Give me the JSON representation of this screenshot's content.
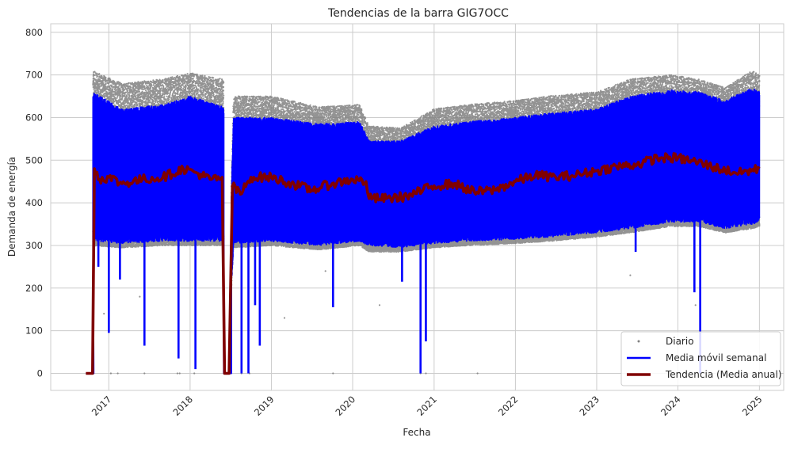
{
  "chart_data": {
    "type": "line",
    "title": "Tendencias de la barra GIG7OCC",
    "xlabel": "Fecha",
    "ylabel": "Demanda de energía",
    "x_range": [
      "2016-04-15",
      "2025-04-20"
    ],
    "ylim": [
      -40,
      820
    ],
    "x_tick_labels": [
      "2017",
      "2018",
      "2019",
      "2020",
      "2021",
      "2022",
      "2023",
      "2024",
      "2025"
    ],
    "y_ticks": [
      0,
      100,
      200,
      300,
      400,
      500,
      600,
      700,
      800
    ],
    "grid": true,
    "legend_position": "bottom-right",
    "colors": {
      "daily": "#808080",
      "weekly": "#0000ff",
      "annual": "#800000",
      "grid": "#cccccc",
      "axes": "#cccccc"
    },
    "series": [
      {
        "name": "Diario",
        "style": "scatter",
        "approx_envelope": {
          "x": [
            "2016-09-20",
            "2016-10-20",
            "2017-03-01",
            "2017-09-01",
            "2018-01-01",
            "2018-06-01",
            "2018-06-15",
            "2018-07-15",
            "2019-01-01",
            "2019-08-01",
            "2020-02-01",
            "2020-03-15",
            "2020-08-01",
            "2021-01-01",
            "2021-06-01",
            "2022-01-01",
            "2022-06-01",
            "2023-01-01",
            "2023-06-01",
            "2023-12-01",
            "2024-04-01",
            "2024-08-01",
            "2024-12-01",
            "2025-01-01"
          ],
          "upper": [
            0,
            710,
            680,
            690,
            705,
            690,
            0,
            650,
            650,
            625,
            630,
            580,
            575,
            620,
            630,
            640,
            650,
            660,
            690,
            700,
            690,
            670,
            710,
            700
          ],
          "lower": [
            0,
            300,
            295,
            300,
            300,
            300,
            0,
            295,
            300,
            290,
            300,
            285,
            285,
            295,
            300,
            305,
            310,
            320,
            330,
            345,
            345,
            330,
            340,
            345
          ]
        }
      },
      {
        "name": "Media móvil semanal",
        "style": "line",
        "approx_envelope": {
          "x": [
            "2016-09-20",
            "2016-10-20",
            "2017-03-01",
            "2017-09-01",
            "2018-01-01",
            "2018-06-01",
            "2018-06-15",
            "2018-07-15",
            "2019-01-01",
            "2019-08-01",
            "2020-02-01",
            "2020-03-15",
            "2020-08-01",
            "2021-01-01",
            "2021-06-01",
            "2022-01-01",
            "2022-06-01",
            "2023-01-01",
            "2023-06-01",
            "2023-12-01",
            "2024-04-01",
            "2024-08-01",
            "2024-12-01",
            "2025-01-01"
          ],
          "upper": [
            0,
            660,
            620,
            630,
            650,
            625,
            0,
            600,
            600,
            585,
            590,
            545,
            545,
            580,
            590,
            600,
            610,
            620,
            650,
            665,
            660,
            640,
            670,
            660
          ],
          "lower": [
            0,
            310,
            305,
            310,
            310,
            310,
            0,
            305,
            310,
            300,
            310,
            300,
            295,
            305,
            310,
            315,
            320,
            330,
            340,
            355,
            355,
            340,
            350,
            355
          ]
        },
        "dips": [
          {
            "x": "2016-11-15",
            "y": 250
          },
          {
            "x": "2017-01-01",
            "y": 95
          },
          {
            "x": "2017-02-20",
            "y": 220
          },
          {
            "x": "2017-06-10",
            "y": 65
          },
          {
            "x": "2017-11-10",
            "y": 35
          },
          {
            "x": "2018-01-25",
            "y": 10
          },
          {
            "x": "2018-08-20",
            "y": 0
          },
          {
            "x": "2018-09-20",
            "y": 0
          },
          {
            "x": "2018-10-20",
            "y": 160
          },
          {
            "x": "2018-11-10",
            "y": 65
          },
          {
            "x": "2019-10-05",
            "y": 155
          },
          {
            "x": "2020-08-10",
            "y": 215
          },
          {
            "x": "2020-11-01",
            "y": 0
          },
          {
            "x": "2020-11-25",
            "y": 75
          },
          {
            "x": "2023-06-25",
            "y": 285
          },
          {
            "x": "2024-03-15",
            "y": 190
          },
          {
            "x": "2024-04-10",
            "y": 0
          }
        ]
      },
      {
        "name": "Tendencia (Media anual)",
        "style": "line",
        "x": [
          "2016-09-20",
          "2016-10-20",
          "2016-10-28",
          "2016-11-20",
          "2017-01-01",
          "2017-03-01",
          "2017-06-01",
          "2017-09-01",
          "2017-12-01",
          "2018-02-01",
          "2018-04-01",
          "2018-05-25",
          "2018-06-05",
          "2018-06-25",
          "2018-07-10",
          "2018-08-15",
          "2018-10-01",
          "2019-01-01",
          "2019-04-01",
          "2019-07-01",
          "2019-10-01",
          "2020-01-01",
          "2020-03-01",
          "2020-03-15",
          "2020-06-01",
          "2020-09-01",
          "2021-01-01",
          "2021-04-01",
          "2021-07-01",
          "2021-10-01",
          "2022-01-01",
          "2022-04-01",
          "2022-07-01",
          "2022-10-01",
          "2023-01-01",
          "2023-04-01",
          "2023-07-01",
          "2023-10-01",
          "2024-01-01",
          "2024-04-01",
          "2024-07-01",
          "2024-10-01",
          "2025-01-01"
        ],
        "y": [
          0,
          0,
          480,
          455,
          460,
          445,
          455,
          460,
          480,
          470,
          455,
          460,
          0,
          0,
          440,
          420,
          460,
          460,
          445,
          430,
          445,
          455,
          450,
          410,
          410,
          415,
          440,
          445,
          425,
          430,
          450,
          465,
          460,
          465,
          475,
          485,
          490,
          505,
          505,
          495,
          480,
          470,
          480
        ]
      }
    ]
  }
}
